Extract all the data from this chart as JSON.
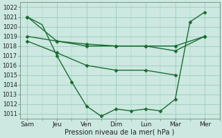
{
  "xlabel": "Pression niveau de la mer( hPa )",
  "ylim": [
    1010.5,
    1022.5
  ],
  "yticks": [
    1011,
    1012,
    1013,
    1014,
    1015,
    1016,
    1017,
    1018,
    1019,
    1020,
    1021,
    1022
  ],
  "xtick_labels": [
    "Sam",
    "Jeu",
    "Ven",
    "Dim",
    "Lun",
    "Mar",
    "Mer"
  ],
  "bg_color": "#cce8e0",
  "grid_color": "#99ccbb",
  "line_color": "#1a6b30",
  "line1_x": [
    0,
    2,
    4,
    6,
    8,
    10,
    12
  ],
  "line1_y": [
    1021.0,
    1018.5,
    1018.0,
    1018.0,
    1018.0,
    1017.5,
    1019.0
  ],
  "line2_x": [
    0,
    2,
    4,
    6,
    8,
    10,
    12
  ],
  "line2_y": [
    1019.0,
    1018.5,
    1018.2,
    1018.0,
    1018.0,
    1018.0,
    1019.0
  ],
  "line3_x": [
    0,
    2,
    4,
    6,
    8,
    10
  ],
  "line3_y": [
    1018.5,
    1017.3,
    1016.0,
    1015.5,
    1015.5,
    1015.0
  ],
  "line4_x": [
    0,
    1,
    2,
    3,
    4,
    5,
    6,
    7,
    8,
    9,
    10,
    11,
    12
  ],
  "line4_y": [
    1021.0,
    1020.2,
    1017.0,
    1014.3,
    1011.8,
    1010.75,
    1011.5,
    1011.3,
    1011.5,
    1011.3,
    1012.5,
    1020.5,
    1021.5
  ],
  "line4_marker_x": [
    0,
    2,
    3,
    4,
    5,
    6,
    7,
    8,
    9,
    10,
    11,
    12
  ],
  "line4_marker_y": [
    1021.0,
    1017.0,
    1014.3,
    1011.8,
    1010.75,
    1011.5,
    1011.3,
    1011.5,
    1011.3,
    1012.5,
    1020.5,
    1021.5
  ],
  "xtick_x": [
    0,
    2,
    4,
    6,
    8,
    10,
    12
  ]
}
